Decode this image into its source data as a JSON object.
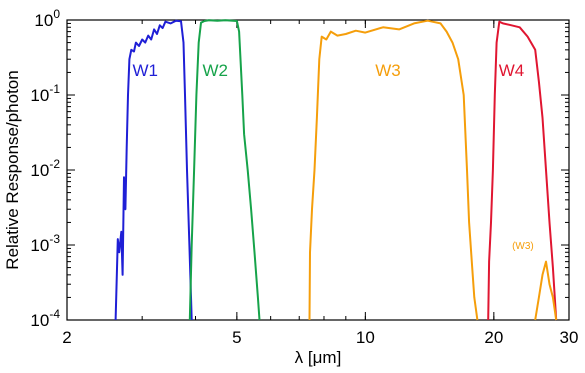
{
  "chart_data": {
    "type": "line",
    "xlabel": "λ [μm]",
    "ylabel": "Relative Response/photon",
    "x_scale": "log",
    "y_scale": "log",
    "xlim": [
      2,
      30
    ],
    "ylim": [
      0.0001,
      1
    ],
    "x_ticks": [
      {
        "value": 2,
        "label": "2"
      },
      {
        "value": 5,
        "label": "5"
      },
      {
        "value": 10,
        "label": "10"
      },
      {
        "value": 20,
        "label": "20"
      },
      {
        "value": 30,
        "label": "30"
      }
    ],
    "y_ticks": [
      {
        "value": 1,
        "base": "10",
        "exp": "0"
      },
      {
        "value": 0.1,
        "base": "10",
        "exp": "-1"
      },
      {
        "value": 0.01,
        "base": "10",
        "exp": "-2"
      },
      {
        "value": 0.001,
        "base": "10",
        "exp": "-3"
      },
      {
        "value": 0.0001,
        "base": "10",
        "exp": "-4"
      }
    ],
    "grid": false,
    "series": [
      {
        "name": "W1",
        "color": "#1f1fd6",
        "points": [
          [
            2.6,
            0.0001
          ],
          [
            2.63,
            0.0012
          ],
          [
            2.65,
            0.0008
          ],
          [
            2.68,
            0.0015
          ],
          [
            2.7,
            0.0004
          ],
          [
            2.72,
            0.008
          ],
          [
            2.74,
            0.003
          ],
          [
            2.76,
            0.02
          ],
          [
            2.78,
            0.1
          ],
          [
            2.8,
            0.3
          ],
          [
            2.83,
            0.4
          ],
          [
            2.87,
            0.38
          ],
          [
            2.9,
            0.5
          ],
          [
            2.95,
            0.45
          ],
          [
            3.0,
            0.55
          ],
          [
            3.05,
            0.5
          ],
          [
            3.1,
            0.62
          ],
          [
            3.15,
            0.55
          ],
          [
            3.2,
            0.75
          ],
          [
            3.25,
            0.65
          ],
          [
            3.3,
            0.85
          ],
          [
            3.35,
            0.78
          ],
          [
            3.4,
            0.95
          ],
          [
            3.5,
            0.9
          ],
          [
            3.6,
            0.98
          ],
          [
            3.7,
            0.96
          ],
          [
            3.75,
            0.5
          ],
          [
            3.78,
            0.1
          ],
          [
            3.82,
            0.01
          ],
          [
            3.87,
            0.001
          ],
          [
            3.92,
            0.0001
          ]
        ]
      },
      {
        "name": "W2",
        "color": "#16a34a",
        "points": [
          [
            3.88,
            0.0001
          ],
          [
            3.92,
            0.001
          ],
          [
            3.97,
            0.01
          ],
          [
            4.02,
            0.1
          ],
          [
            4.07,
            0.5
          ],
          [
            4.12,
            0.92
          ],
          [
            4.2,
            0.97
          ],
          [
            4.3,
            0.99
          ],
          [
            4.5,
            0.98
          ],
          [
            4.7,
            0.99
          ],
          [
            4.9,
            0.98
          ],
          [
            5.0,
            0.97
          ],
          [
            5.06,
            0.7
          ],
          [
            5.1,
            0.3
          ],
          [
            5.15,
            0.1
          ],
          [
            5.2,
            0.03
          ],
          [
            5.3,
            0.01
          ],
          [
            5.4,
            0.003
          ],
          [
            5.5,
            0.0008
          ],
          [
            5.6,
            0.0002
          ],
          [
            5.65,
            0.0001
          ]
        ]
      },
      {
        "name": "W3",
        "color": "#f59e0b",
        "points": [
          [
            7.4,
            0.0001
          ],
          [
            7.42,
            0.0008
          ],
          [
            7.5,
            0.003
          ],
          [
            7.6,
            0.01
          ],
          [
            7.7,
            0.05
          ],
          [
            7.8,
            0.3
          ],
          [
            7.9,
            0.6
          ],
          [
            8.1,
            0.55
          ],
          [
            8.3,
            0.7
          ],
          [
            8.6,
            0.62
          ],
          [
            9.0,
            0.65
          ],
          [
            9.5,
            0.72
          ],
          [
            10.0,
            0.68
          ],
          [
            11.0,
            0.8
          ],
          [
            12.0,
            0.75
          ],
          [
            13.0,
            0.9
          ],
          [
            14.0,
            0.98
          ],
          [
            15.0,
            0.9
          ],
          [
            15.5,
            0.7
          ],
          [
            16.0,
            0.5
          ],
          [
            16.5,
            0.3
          ],
          [
            17.0,
            0.1
          ],
          [
            17.3,
            0.01
          ],
          [
            17.5,
            0.002
          ],
          [
            17.8,
            0.0005
          ],
          [
            18.0,
            0.0002
          ],
          [
            18.3,
            0.0001
          ]
        ]
      },
      {
        "name": "W4",
        "color": "#e01631",
        "points": [
          [
            19.4,
            0.0001
          ],
          [
            19.5,
            0.0006
          ],
          [
            19.7,
            0.002
          ],
          [
            19.9,
            0.01
          ],
          [
            20.1,
            0.1
          ],
          [
            20.3,
            0.5
          ],
          [
            20.6,
            0.95
          ],
          [
            21.0,
            0.9
          ],
          [
            22.0,
            0.85
          ],
          [
            23.0,
            0.8
          ],
          [
            24.0,
            0.6
          ],
          [
            25.0,
            0.4
          ],
          [
            25.5,
            0.15
          ],
          [
            26.0,
            0.05
          ],
          [
            26.5,
            0.01
          ],
          [
            27.0,
            0.002
          ],
          [
            27.5,
            0.0005
          ],
          [
            28.0,
            0.0001
          ]
        ]
      },
      {
        "name": "(W3)",
        "color": "#f59e0b",
        "points": [
          [
            25.0,
            0.0001
          ],
          [
            25.5,
            0.0002
          ],
          [
            26.0,
            0.0004
          ],
          [
            26.5,
            0.0006
          ],
          [
            27.0,
            0.0003
          ],
          [
            27.5,
            0.0002
          ],
          [
            28.0,
            0.0001
          ]
        ]
      }
    ]
  }
}
